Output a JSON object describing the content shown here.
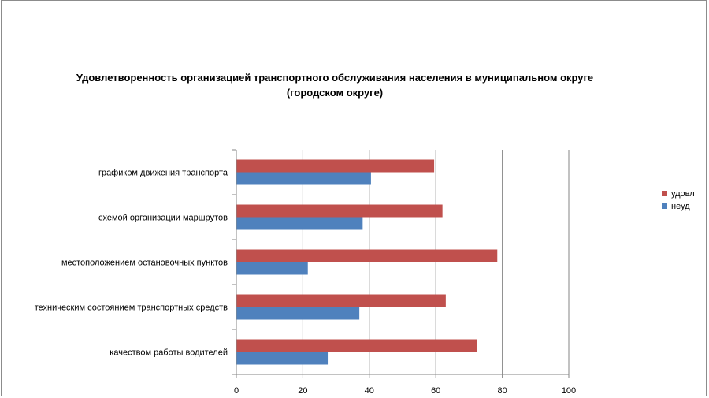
{
  "chart_data": {
    "type": "bar",
    "orientation": "horizontal",
    "title": "Удовлетворенность организацией транспортного обслуживания населения в муниципальном округе",
    "title_line2": "(городском округе)",
    "categories": [
      "графиком движения транспорта",
      "схемой организации маршрутов",
      "местоположением остановочных пунктов",
      "техническим состоянием транспортных средств",
      "качеством работы водителей"
    ],
    "series": [
      {
        "name": "удовл",
        "color": "#C0504D",
        "values": [
          59.5,
          62,
          78.5,
          63,
          72.5
        ]
      },
      {
        "name": "неуд",
        "color": "#4F81BD",
        "values": [
          40.5,
          38,
          21.5,
          37,
          27.5
        ]
      }
    ],
    "xlim": [
      0,
      100
    ],
    "xticks": [
      0,
      20,
      40,
      60,
      80,
      100
    ],
    "grid": true,
    "legend_position": "right"
  }
}
